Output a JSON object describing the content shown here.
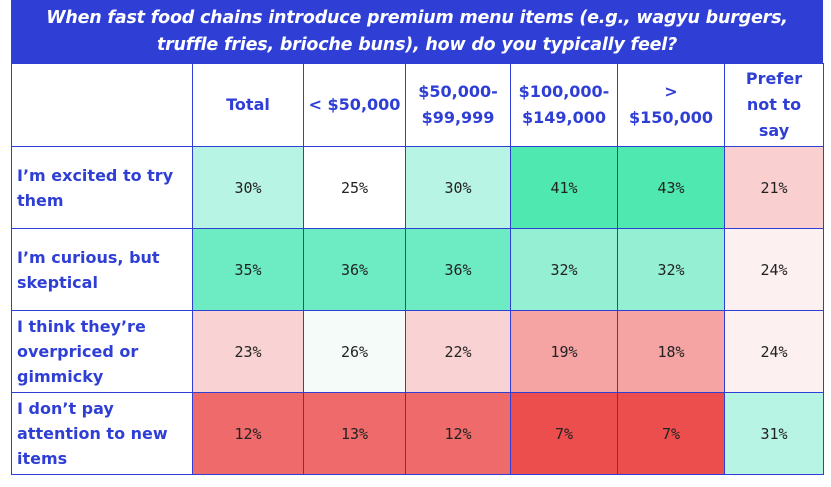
{
  "chart_data": {
    "type": "table",
    "title_lines": [
      "When fast food chains introduce premium menu items (e.g., wagyu burgers,",
      "truffle fries, brioche buns), how do you typically feel?"
    ],
    "columns": [
      {
        "key": "total",
        "lines": [
          "Total"
        ]
      },
      {
        "key": "lt50",
        "lines": [
          "< $50,000"
        ]
      },
      {
        "key": "50to99",
        "lines": [
          "$50,000-",
          "$99,999"
        ]
      },
      {
        "key": "100to149",
        "lines": [
          "$100,000-",
          "$149,000"
        ]
      },
      {
        "key": "gt150",
        "lines": [
          ">",
          "$150,000"
        ]
      },
      {
        "key": "pns",
        "lines": [
          "Prefer",
          "not to",
          "say"
        ]
      }
    ],
    "rows": [
      {
        "lines": [
          "I’m excited to try",
          "them"
        ],
        "values": [
          "30%",
          "25%",
          "30%",
          "41%",
          "43%",
          "21%"
        ]
      },
      {
        "lines": [
          "I’m curious, but",
          "skeptical"
        ],
        "values": [
          "35%",
          "36%",
          "36%",
          "32%",
          "32%",
          "24%"
        ]
      },
      {
        "lines": [
          "I think they’re",
          "overpriced or",
          "gimmicky"
        ],
        "values": [
          "23%",
          "26%",
          "22%",
          "19%",
          "18%",
          "24%"
        ]
      },
      {
        "lines": [
          "I don’t pay",
          "attention to new",
          "items"
        ],
        "values": [
          "12%",
          "13%",
          "12%",
          "7%",
          "7%",
          "31%"
        ]
      }
    ],
    "cell_colors": [
      [
        "#b8f4e3",
        "#ffffff",
        "#b8f4e3",
        "#4ee8b0",
        "#4ee8b0",
        "#f9cfcf"
      ],
      [
        "#6debc3",
        "#6debc3",
        "#6debc3",
        "#95f0d3",
        "#95f0d3",
        "#fdf0f0"
      ],
      [
        "#f9d3d3",
        "#f5fbf8",
        "#f9d3d3",
        "#f5a3a3",
        "#f5a3a3",
        "#fdf0f0"
      ],
      [
        "#ef6b6b",
        "#ef6b6b",
        "#ef6b6b",
        "#ec4d4d",
        "#ec4d4d",
        "#b8f4e3"
      ]
    ],
    "accent_color": "#2f3fd6"
  }
}
